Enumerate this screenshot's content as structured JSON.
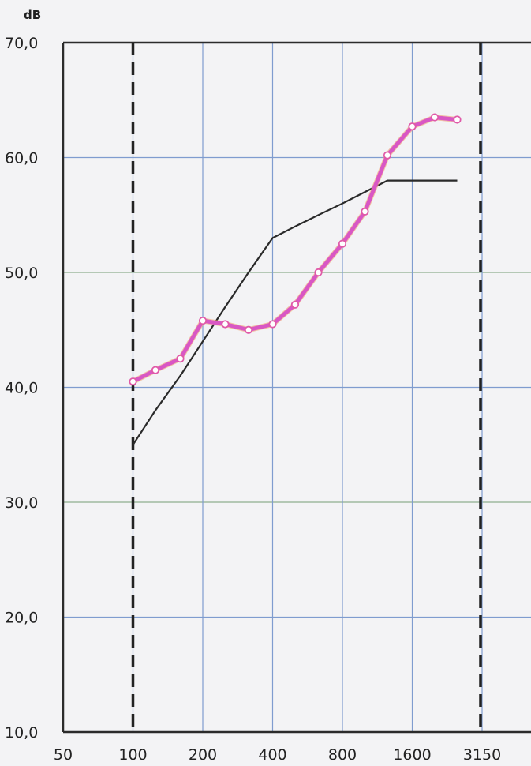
{
  "chart_data": {
    "type": "line",
    "title": "",
    "xlabel": "",
    "ylabel": "dB",
    "x_scale": "log",
    "x_ticks": [
      "50",
      "100",
      "200",
      "400",
      "800",
      "1600",
      "3150"
    ],
    "y_ticks": [
      "70,0",
      "60,0",
      "50,0",
      "40,0",
      "30,0",
      "20,0",
      "10,0"
    ],
    "ylim": [
      10,
      70
    ],
    "xlim": [
      50,
      4000
    ],
    "grid": true,
    "x": [
      100,
      125,
      160,
      200,
      250,
      315,
      400,
      500,
      630,
      800,
      1000,
      1250,
      1600,
      2000,
      2500
    ],
    "series": [
      {
        "name": "",
        "color": "#d957c4",
        "marker": "circle",
        "values": [
          40.5,
          41.5,
          42.5,
          45.8,
          45.5,
          45.0,
          45.5,
          47.2,
          50.0,
          52.5,
          55.3,
          60.2,
          62.7,
          63.5,
          63.3
        ]
      },
      {
        "name": "",
        "color": "#2a2a2a",
        "marker": "none",
        "values": [
          35.0,
          38.0,
          41.0,
          44.0,
          47.0,
          50.0,
          53.0,
          54.0,
          55.0,
          56.0,
          57.0,
          58.0,
          58.0,
          58.0,
          58.0
        ]
      }
    ],
    "reference_lines_x": [
      100,
      3150
    ]
  }
}
